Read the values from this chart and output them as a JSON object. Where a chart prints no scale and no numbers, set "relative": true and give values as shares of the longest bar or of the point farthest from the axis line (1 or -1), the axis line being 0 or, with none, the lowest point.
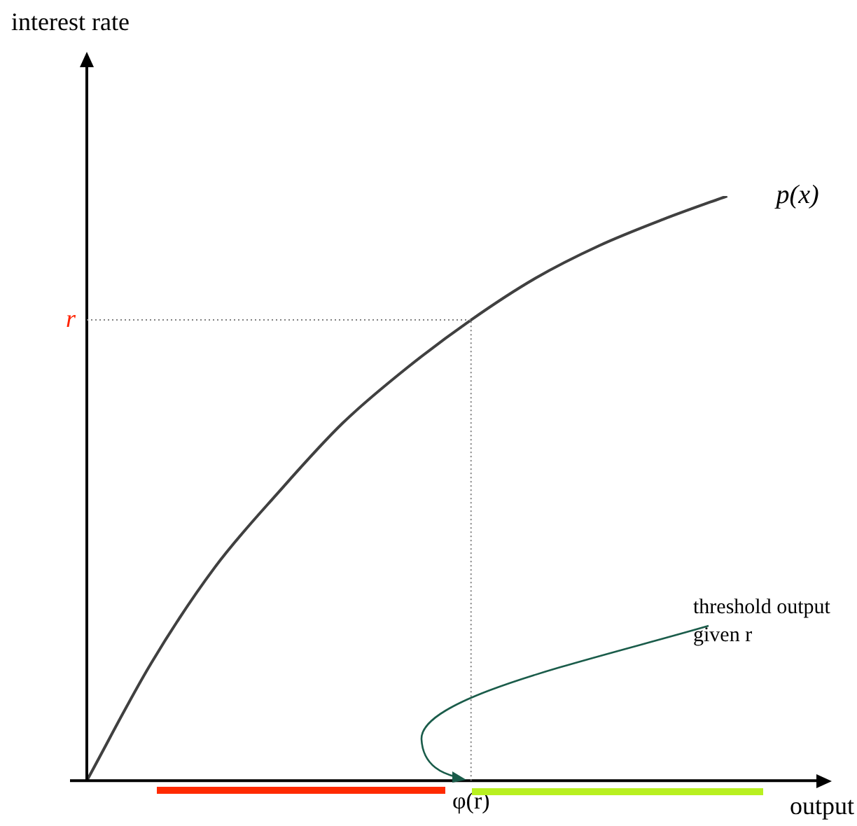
{
  "chart_data": {
    "type": "line",
    "relative": true,
    "xlabel": "output",
    "categories": [
      null,
      null,
      null,
      null,
      null,
      null,
      null,
      null,
      null,
      null,
      null,
      null
    ],
    "series": [
      {
        "name": "p(x)",
        "color": "#404040",
        "values": [
          0,
          0.2,
          0.365,
          0.494,
          0.612,
          0.706,
          0.788,
          0.859,
          0.915,
          0.96,
          1,
          null
        ]
      }
    ],
    "ref_lines": [
      {
        "axis": "y",
        "value": 0.788,
        "label": "r",
        "color": "#808080",
        "line_style": "dotted"
      },
      {
        "axis": "x",
        "label": "φ(r)",
        "color": "#808080",
        "line_style": "dotted"
      }
    ],
    "annotations": [
      "interest rate",
      "threshold output given r"
    ],
    "grid": false,
    "legend": false,
    "marker": "none",
    "line_style": "solid"
  }
}
